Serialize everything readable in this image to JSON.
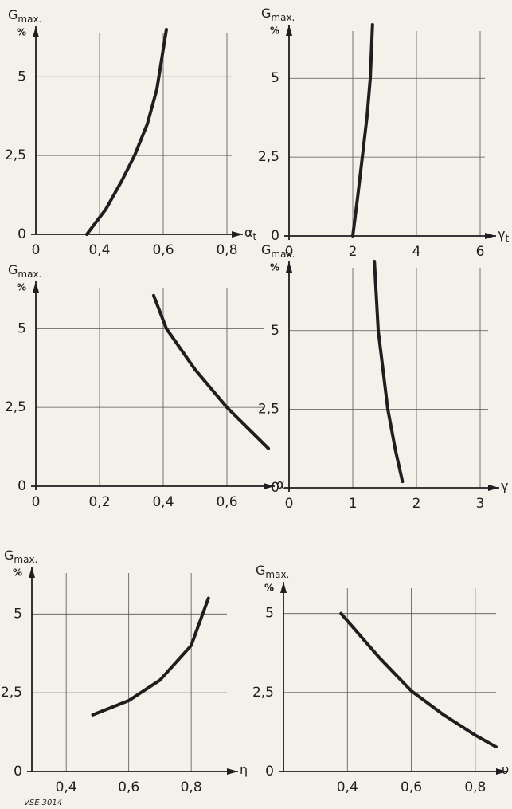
{
  "chart_data": [
    {
      "type": "line",
      "ylabel": {
        "symbol": "G",
        "subscript": "max."
      },
      "yunit": "%",
      "xlabel": {
        "symbol": "α",
        "subscript": "t"
      },
      "x_origin_label": "0",
      "x": [
        0.36,
        0.42,
        0.47,
        0.51,
        0.55,
        0.58,
        0.61
      ],
      "values": [
        0,
        0.8,
        1.7,
        2.5,
        3.5,
        4.6,
        6.5
      ],
      "xlim": [
        0.2,
        0.85
      ],
      "ylim": [
        0,
        6.6
      ],
      "xticks": [
        {
          "value": 0.4,
          "label": "0,4"
        },
        {
          "value": 0.6,
          "label": "0,6"
        },
        {
          "value": 0.8,
          "label": "0,8"
        }
      ],
      "yticks": [
        0,
        {
          "value": 2.5,
          "label": "2,5"
        },
        5
      ],
      "grid": true,
      "color": "#1e1e1e"
    },
    {
      "type": "line",
      "ylabel": {
        "symbol": "G",
        "subscript": "max."
      },
      "yunit": "%",
      "xlabel": {
        "symbol": "γ",
        "subscript": "t"
      },
      "x": [
        2,
        2.15,
        2.3,
        2.45,
        2.55,
        2.62
      ],
      "values": [
        0,
        1.2,
        2.5,
        3.8,
        5,
        6.7
      ],
      "xlim": [
        0,
        6.5
      ],
      "ylim": [
        0,
        6.7
      ],
      "xticks": [
        0,
        2,
        4,
        6
      ],
      "yticks": [
        0,
        {
          "value": 2.5,
          "label": "2,5"
        },
        5
      ],
      "grid": true,
      "color": "#1e1e1e"
    },
    {
      "type": "line",
      "ylabel": {
        "symbol": "G",
        "subscript": "max."
      },
      "yunit": "%",
      "xlabel": {
        "symbol": "α",
        "subscript": ""
      },
      "x": [
        0.37,
        0.41,
        0.5,
        0.6,
        0.73
      ],
      "values": [
        6.05,
        5,
        3.7,
        2.5,
        1.2
      ],
      "xlim": [
        0,
        0.75
      ],
      "ylim": [
        0,
        6.5
      ],
      "xticks": [
        0,
        {
          "value": 0.2,
          "label": "0,2"
        },
        {
          "value": 0.4,
          "label": "0,4"
        },
        {
          "value": 0.6,
          "label": "0,6"
        }
      ],
      "yticks": [
        0,
        {
          "value": 2.5,
          "label": "2,5"
        },
        5
      ],
      "grid": true,
      "color": "#1e1e1e"
    },
    {
      "type": "line",
      "ylabel": {
        "symbol": "G",
        "subscript": "max."
      },
      "yunit": "%",
      "xlabel": {
        "symbol": "γ",
        "subscript": ""
      },
      "x": [
        1.34,
        1.4,
        1.55,
        1.67,
        1.78
      ],
      "values": [
        7.2,
        5,
        2.5,
        1.2,
        0.2
      ],
      "xlim": [
        0,
        3.3
      ],
      "ylim": [
        0,
        7.2
      ],
      "xticks": [
        0,
        1,
        2,
        3
      ],
      "yticks": [
        0,
        {
          "value": 2.5,
          "label": "2,5"
        },
        5
      ],
      "grid": true,
      "color": "#1e1e1e"
    },
    {
      "type": "line",
      "ylabel": {
        "symbol": "G",
        "subscript": "max."
      },
      "yunit": "%",
      "xlabel": {
        "symbol": "η",
        "subscript": ""
      },
      "x": [
        0.485,
        0.6,
        0.7,
        0.8,
        0.855
      ],
      "values": [
        1.8,
        2.25,
        2.9,
        4.0,
        5.5
      ],
      "xlim": [
        0.29,
        0.95
      ],
      "ylim": [
        0,
        6.5
      ],
      "xticks": [
        {
          "value": 0.4,
          "label": "0,4"
        },
        {
          "value": 0.6,
          "label": "0,6"
        },
        {
          "value": 0.8,
          "label": "0,8"
        }
      ],
      "yticks": [
        0,
        {
          "value": 2.5,
          "label": "2,5"
        },
        5
      ],
      "grid": true,
      "color": "#1e1e1e"
    },
    {
      "type": "line",
      "ylabel": {
        "symbol": "G",
        "subscript": "max."
      },
      "yunit": "%",
      "xlabel": {
        "symbol": "υ",
        "subscript": ""
      },
      "x": [
        0.38,
        0.5,
        0.6,
        0.7,
        0.8,
        0.865
      ],
      "values": [
        5,
        3.6,
        2.55,
        1.8,
        1.15,
        0.78
      ],
      "xlim": [
        0.2,
        0.9
      ],
      "ylim": [
        0,
        6
      ],
      "xticks": [
        {
          "value": 0.4,
          "label": "0,4"
        },
        {
          "value": 0.6,
          "label": "0,6"
        },
        {
          "value": 0.8,
          "label": "0,8"
        }
      ],
      "yticks": [
        0,
        {
          "value": 2.5,
          "label": "2,5"
        },
        5
      ],
      "grid": true,
      "color": "#1e1e1e"
    }
  ],
  "footer": "VSE 3014"
}
